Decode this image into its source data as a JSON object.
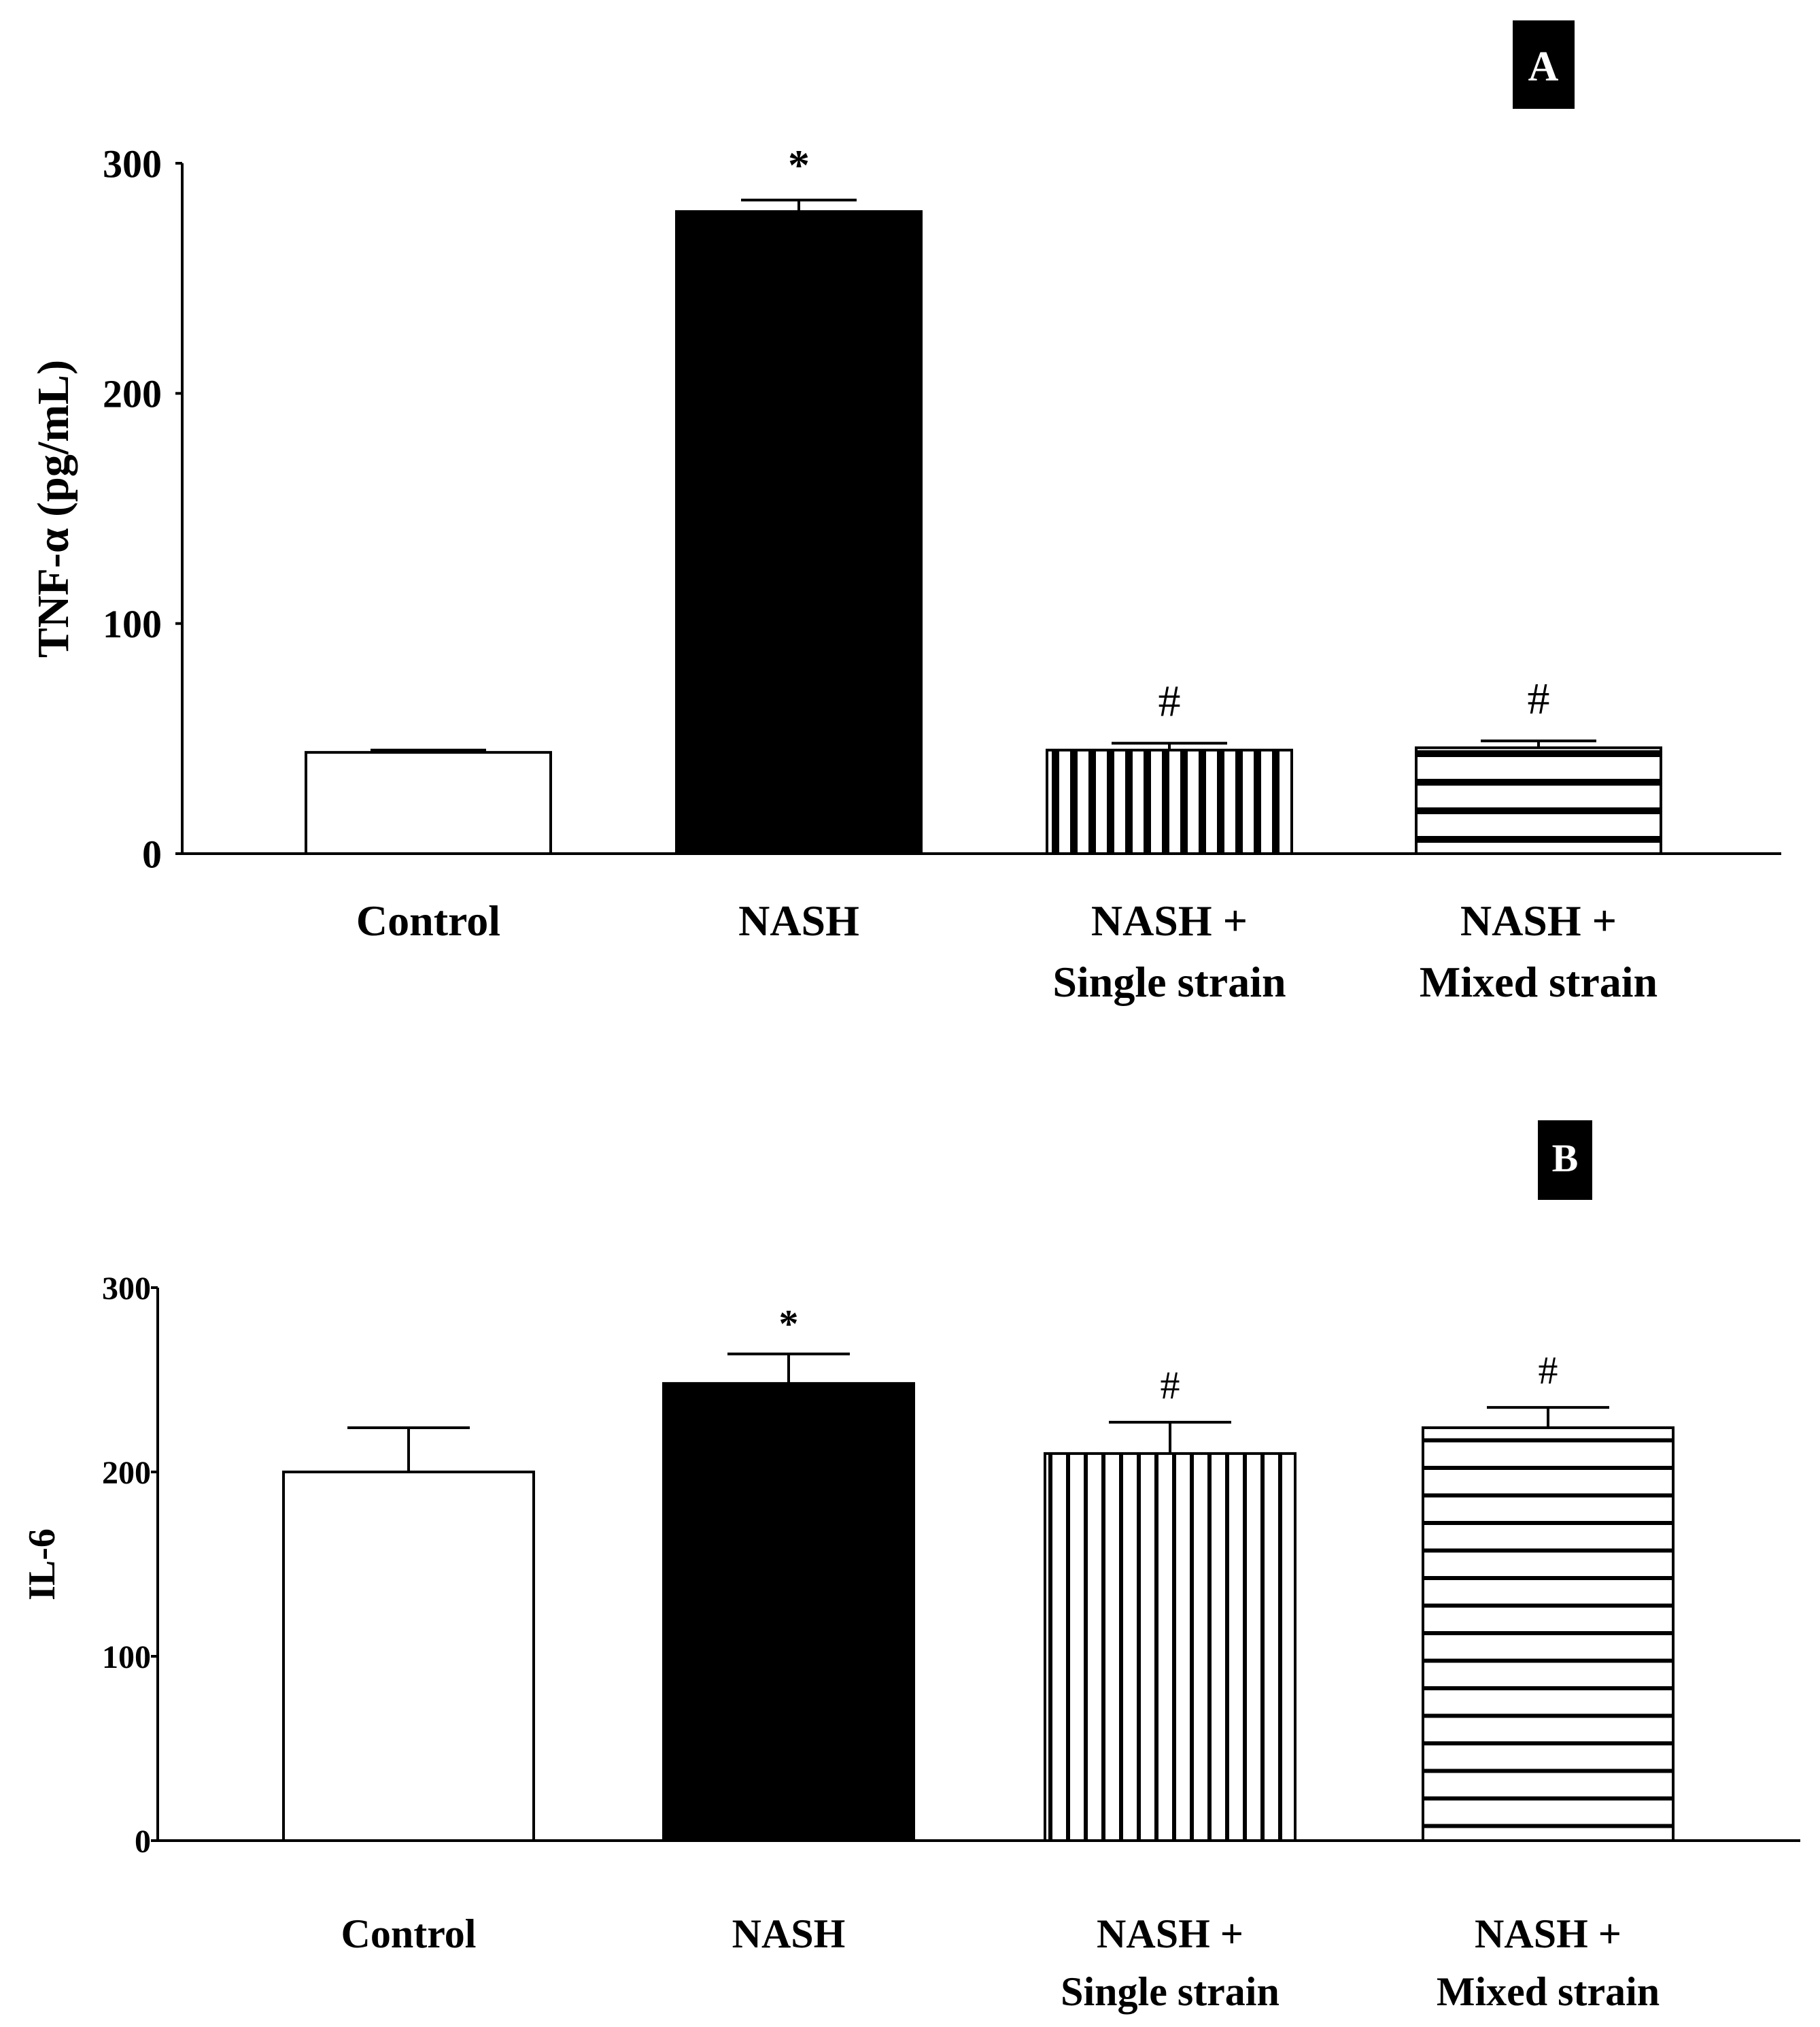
{
  "chart_data": [
    {
      "panel": "A",
      "type": "bar",
      "title": "",
      "xlabel": "",
      "ylabel": "TNF-α (pg/mL)",
      "ylim": [
        0,
        300
      ],
      "yticks": [
        "0",
        "100",
        "200",
        "300"
      ],
      "categories": [
        {
          "line1": "Control",
          "line2": ""
        },
        {
          "line1": "NASH",
          "line2": ""
        },
        {
          "line1": "NASH +",
          "line2": "Single strain"
        },
        {
          "line1": "NASH +",
          "line2": "Mixed strain"
        }
      ],
      "values": [
        44,
        279,
        45,
        46
      ],
      "errors": [
        1,
        5,
        3,
        3
      ],
      "fills": [
        "white",
        "black",
        "vertical-stripes",
        "horizontal-stripes"
      ],
      "annotations": [
        "",
        "*",
        "#",
        "#"
      ]
    },
    {
      "panel": "B",
      "type": "bar",
      "title": "",
      "xlabel": "",
      "ylabel": "IL-6",
      "ylim": [
        0,
        300
      ],
      "yticks": [
        "0",
        "100",
        "200",
        "300"
      ],
      "categories": [
        {
          "line1": "Control",
          "line2": ""
        },
        {
          "line1": "NASH",
          "line2": ""
        },
        {
          "line1": "NASH +",
          "line2": "Single strain"
        },
        {
          "line1": "NASH +",
          "line2": "Mixed strain"
        }
      ],
      "values": [
        200,
        248,
        210,
        224
      ],
      "errors": [
        24,
        16,
        17,
        11
      ],
      "fills": [
        "white",
        "black",
        "vertical-stripes",
        "horizontal-stripes"
      ],
      "annotations": [
        "",
        "*",
        "#",
        "#"
      ]
    }
  ]
}
